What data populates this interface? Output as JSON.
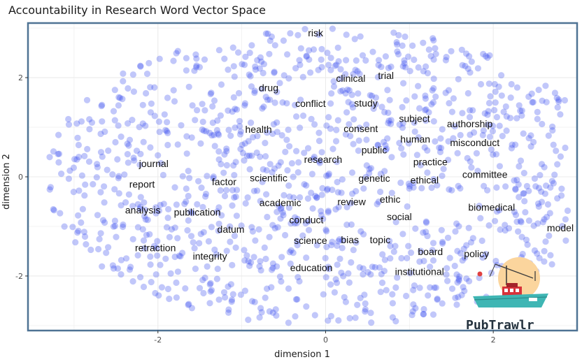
{
  "chart_data": {
    "type": "scatter",
    "title": "Accountability in Research Word Vector Space",
    "xlabel": "dimension 1",
    "ylabel": "dimension 2",
    "xlim": [
      -3.55,
      3.0
    ],
    "ylim": [
      -3.1,
      3.1
    ],
    "x_ticks": [
      "-2",
      "0",
      "2"
    ],
    "x_tick_values": [
      -2,
      0,
      2
    ],
    "y_ticks": [
      "-2",
      "0",
      "2"
    ],
    "y_tick_values": [
      -2,
      0,
      2
    ],
    "grid": true,
    "point_color": "#3344ee",
    "labels": [
      {
        "text": "risk",
        "x": -0.12,
        "y": 2.9
      },
      {
        "text": "clinical",
        "x": 0.3,
        "y": 1.99
      },
      {
        "text": "trial",
        "x": 0.72,
        "y": 2.04
      },
      {
        "text": "drug",
        "x": -0.68,
        "y": 1.8
      },
      {
        "text": "conflict",
        "x": -0.18,
        "y": 1.48
      },
      {
        "text": "study",
        "x": 0.48,
        "y": 1.49
      },
      {
        "text": "subject",
        "x": 1.06,
        "y": 1.18
      },
      {
        "text": "authorship",
        "x": 1.72,
        "y": 1.07
      },
      {
        "text": "health",
        "x": -0.8,
        "y": 0.96
      },
      {
        "text": "consent",
        "x": 0.42,
        "y": 0.97
      },
      {
        "text": "human",
        "x": 1.07,
        "y": 0.76
      },
      {
        "text": "misconduct",
        "x": 1.78,
        "y": 0.69
      },
      {
        "text": "public",
        "x": 0.58,
        "y": 0.54
      },
      {
        "text": "research",
        "x": -0.03,
        "y": 0.35
      },
      {
        "text": "practice",
        "x": 1.25,
        "y": 0.3
      },
      {
        "text": "journal",
        "x": -2.05,
        "y": 0.27
      },
      {
        "text": "committee",
        "x": 1.9,
        "y": 0.05
      },
      {
        "text": "genetic",
        "x": 0.58,
        "y": -0.03
      },
      {
        "text": "ethical",
        "x": 1.18,
        "y": -0.06
      },
      {
        "text": "scientific",
        "x": -0.68,
        "y": -0.02
      },
      {
        "text": "factor",
        "x": -1.21,
        "y": -0.1
      },
      {
        "text": "report",
        "x": -2.19,
        "y": -0.15
      },
      {
        "text": "ethic",
        "x": 0.77,
        "y": -0.45
      },
      {
        "text": "review",
        "x": 0.31,
        "y": -0.5
      },
      {
        "text": "academic",
        "x": -0.54,
        "y": -0.52
      },
      {
        "text": "analysis",
        "x": -2.18,
        "y": -0.67
      },
      {
        "text": "publication",
        "x": -1.53,
        "y": -0.71
      },
      {
        "text": "biomedical",
        "x": 1.98,
        "y": -0.61
      },
      {
        "text": "social",
        "x": 0.88,
        "y": -0.8
      },
      {
        "text": "conduct",
        "x": -0.23,
        "y": -0.87
      },
      {
        "text": "model",
        "x": 2.8,
        "y": -1.03
      },
      {
        "text": "datum",
        "x": -1.13,
        "y": -1.06
      },
      {
        "text": "science",
        "x": -0.18,
        "y": -1.28
      },
      {
        "text": "bias",
        "x": 0.29,
        "y": -1.27
      },
      {
        "text": "topic",
        "x": 0.65,
        "y": -1.27
      },
      {
        "text": "retraction",
        "x": -2.03,
        "y": -1.43
      },
      {
        "text": "board",
        "x": 1.25,
        "y": -1.51
      },
      {
        "text": "policy",
        "x": 1.8,
        "y": -1.55
      },
      {
        "text": "integrity",
        "x": -1.38,
        "y": -1.6
      },
      {
        "text": "education",
        "x": -0.17,
        "y": -1.83
      },
      {
        "text": "institutional",
        "x": 1.12,
        "y": -1.91
      }
    ]
  },
  "watermark": {
    "text": "PubTrawlr",
    "icon": "fishing-boat-icon"
  }
}
